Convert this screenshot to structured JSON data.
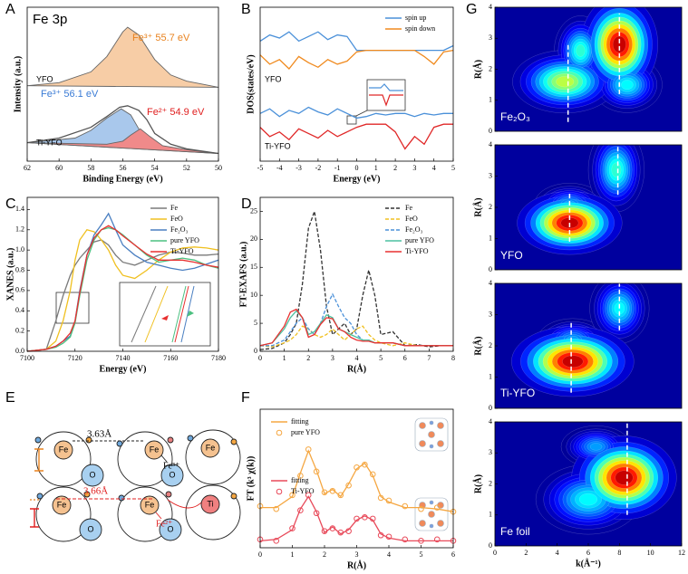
{
  "panel_labels": [
    "A",
    "B",
    "C",
    "D",
    "E",
    "F",
    "G"
  ],
  "chart_data": [
    {
      "type": "line",
      "x_label": "Binding Energy (eV)",
      "y_label": "Intensity (a.u.)",
      "xlim": [
        62,
        50
      ],
      "ylim": [
        0,
        10
      ],
      "xticks": [
        62,
        60,
        58,
        56,
        54,
        52,
        50
      ],
      "series": [
        {
          "color": "#f7cda6",
          "style": "area",
          "x": [
            62,
            60,
            58,
            57,
            56,
            55.7,
            55,
            54,
            53,
            52,
            50
          ],
          "values": [
            4.9,
            5.1,
            5.8,
            6.8,
            8.4,
            8.7,
            8.2,
            6.6,
            5.6,
            5.2,
            4.8
          ]
        },
        {
          "color": "#a9c8ec",
          "style": "area",
          "x": [
            62,
            59,
            58,
            57,
            56.1,
            55.5,
            55,
            54.5,
            54,
            52,
            50
          ],
          "values": [
            1.2,
            1.5,
            2.0,
            2.8,
            3.4,
            3.0,
            2.1,
            1.2,
            0.9,
            0.7,
            0.5
          ]
        },
        {
          "color": "#f08a8a",
          "style": "area",
          "x": [
            62,
            57,
            56,
            55.5,
            54.9,
            54.3,
            53.5,
            52,
            50
          ],
          "values": [
            1.2,
            1.1,
            1.3,
            1.7,
            2.1,
            1.6,
            1.0,
            0.75,
            0.5
          ]
        },
        {
          "color": "#555555",
          "style": "line",
          "x": [
            62,
            60,
            58,
            57,
            56.2,
            55.7,
            55,
            54.5,
            54,
            53,
            52,
            50
          ],
          "values": [
            1.2,
            1.5,
            2.2,
            2.9,
            3.5,
            3.6,
            3.3,
            2.7,
            1.8,
            1.1,
            0.8,
            0.5
          ]
        }
      ],
      "annotations": [
        {
          "text": "Fe 3p",
          "color": "#000000"
        },
        {
          "text": "Fe³⁺ 55.7 eV",
          "color": "#e8821e"
        },
        {
          "text": "YFO",
          "color": "#000000"
        },
        {
          "text": "Fe³⁺ 56.1 eV",
          "color": "#3a7bd5"
        },
        {
          "text": "Ti-YFO",
          "color": "#000000"
        },
        {
          "text": "Fe²⁺ 54.9 eV",
          "color": "#e02020"
        }
      ]
    },
    {
      "type": "line",
      "x_label": "Energy (eV)",
      "y_label": "DOS(states/eV)",
      "xlim": [
        -5,
        5
      ],
      "ylim": [
        0,
        10
      ],
      "xticks": [
        -5,
        -4,
        -3,
        -2,
        -1,
        0,
        1,
        2,
        3,
        4,
        5
      ],
      "legend": "upper right",
      "x": [
        -5,
        -4.5,
        -4,
        -3.5,
        -3,
        -2.5,
        -2,
        -1.5,
        -1,
        -0.5,
        0,
        0.5,
        1,
        1.5,
        2,
        2.5,
        3,
        3.5,
        4,
        4.5,
        5
      ],
      "series": [
        {
          "name": "spin up",
          "color": "#4a90d9",
          "style": "line",
          "values": [
            7.8,
            8.2,
            8.0,
            8.4,
            7.8,
            8.1,
            8.4,
            7.9,
            8.2,
            8.1,
            7.2,
            7.2,
            7.2,
            7.2,
            7.2,
            7.2,
            7.2,
            7.2,
            7.2,
            7.2,
            7.5
          ]
        },
        {
          "name": "spin down",
          "color": "#f08a1e",
          "style": "line",
          "values": [
            6.9,
            6.3,
            6.6,
            6.0,
            6.8,
            6.4,
            6.1,
            6.6,
            6.3,
            6.5,
            7.1,
            7.2,
            7.2,
            7.2,
            7.2,
            7.2,
            7.2,
            6.8,
            6.3,
            7.1,
            7.2
          ]
        },
        {
          "color": "#4a90d9",
          "style": "line",
          "values": [
            3.1,
            3.4,
            2.9,
            3.3,
            3.1,
            3.5,
            3.2,
            3.0,
            3.4,
            3.1,
            2.8,
            2.9,
            3.1,
            3.0,
            3.1,
            3.1,
            2.9,
            3.1,
            3.0,
            3.1,
            3.1
          ]
        },
        {
          "color": "#e02828",
          "style": "line",
          "values": [
            2.2,
            1.6,
            1.9,
            1.4,
            2.1,
            1.8,
            1.5,
            2.0,
            1.6,
            1.9,
            2.2,
            2.4,
            2.4,
            2.4,
            1.9,
            0.8,
            1.6,
            1.1,
            2.2,
            2.4,
            2.4
          ]
        }
      ],
      "annotations": [
        {
          "text": "YFO",
          "color": "#000000"
        },
        {
          "text": "Ti-YFO",
          "color": "#000000"
        }
      ]
    },
    {
      "type": "line",
      "x_label": "Energy (eV)",
      "y_label": "XANES (a.u.)",
      "xlim": [
        7100,
        7180
      ],
      "ylim": [
        0,
        1.52
      ],
      "xticks": [
        7100,
        7120,
        7140,
        7160,
        7180
      ],
      "yticks": [
        {
          "value": 0,
          "label": "0.0"
        },
        {
          "value": 0.2,
          "label": "0.2"
        },
        {
          "value": 0.4,
          "label": "0.4"
        },
        {
          "value": 0.6,
          "label": "0.6"
        },
        {
          "value": 0.8,
          "label": "0.8"
        },
        {
          "value": 1,
          "label": "1.0"
        },
        {
          "value": 1.2,
          "label": "1.2"
        },
        {
          "value": 1.4,
          "label": "1.4"
        }
      ],
      "legend": "upper right",
      "x": [
        7100,
        7108,
        7112,
        7115,
        7118,
        7120,
        7122,
        7125,
        7128,
        7131,
        7134,
        7137,
        7140,
        7145,
        7150,
        7155,
        7160,
        7165,
        7170,
        7175,
        7180
      ],
      "series": [
        {
          "name": "Fe",
          "color": "#7a7a7a",
          "style": "line",
          "values": [
            0,
            0.02,
            0.3,
            0.55,
            0.75,
            0.85,
            0.92,
            1.0,
            1.08,
            1.1,
            1.05,
            0.95,
            0.88,
            0.85,
            0.9,
            0.95,
            0.98,
            0.97,
            0.95,
            0.95,
            0.96
          ]
        },
        {
          "name": "FeO",
          "color": "#f0c020",
          "style": "line",
          "values": [
            0,
            0.02,
            0.1,
            0.3,
            0.6,
            0.9,
            1.1,
            1.2,
            1.18,
            1.1,
            1.0,
            0.85,
            0.75,
            0.72,
            0.8,
            0.9,
            0.98,
            1.02,
            1.03,
            1.02,
            1.0
          ]
        },
        {
          "name": "Fe₂O₃",
          "color": "#4a7fc1",
          "style": "line",
          "values": [
            0,
            0.02,
            0.05,
            0.1,
            0.15,
            0.3,
            0.6,
            0.95,
            1.15,
            1.25,
            1.36,
            1.2,
            1.05,
            0.95,
            0.88,
            0.85,
            0.82,
            0.8,
            0.82,
            0.86,
            0.9
          ]
        },
        {
          "name": "pure YFO",
          "color": "#4cc080",
          "style": "line",
          "values": [
            0,
            0.02,
            0.04,
            0.08,
            0.14,
            0.28,
            0.55,
            0.9,
            1.1,
            1.2,
            1.22,
            1.2,
            1.15,
            1.05,
            0.95,
            0.88,
            0.9,
            0.92,
            0.9,
            0.85,
            0.82
          ]
        },
        {
          "name": "Ti-YFO",
          "color": "#e83030",
          "style": "line",
          "values": [
            0,
            0.02,
            0.05,
            0.1,
            0.18,
            0.3,
            0.58,
            0.95,
            1.12,
            1.2,
            1.24,
            1.2,
            1.14,
            1.05,
            0.96,
            0.9,
            0.9,
            0.9,
            0.88,
            0.85,
            0.83
          ]
        }
      ]
    },
    {
      "type": "line",
      "x_label": "R(Å)",
      "y_label": "FT-EXAFS (a.u.)",
      "xlim": [
        0,
        8
      ],
      "ylim": [
        0,
        27.5
      ],
      "xticks": [
        0,
        1,
        2,
        3,
        4,
        5,
        6,
        7,
        8
      ],
      "yticks": [
        0,
        5,
        10,
        15,
        20,
        25
      ],
      "legend": "upper right",
      "x": [
        0,
        0.5,
        1,
        1.25,
        1.5,
        1.75,
        2,
        2.25,
        2.5,
        2.75,
        3,
        3.25,
        3.5,
        3.75,
        4,
        4.25,
        4.5,
        4.75,
        5,
        5.5,
        6,
        6.5,
        7,
        7.5,
        8
      ],
      "series": [
        {
          "name": "Fe",
          "color": "#333333",
          "style": "dashed",
          "values": [
            0.3,
            0.5,
            1.5,
            3,
            5,
            12,
            22,
            25,
            18,
            8,
            3,
            4,
            5,
            3,
            4,
            10,
            14.5,
            10,
            3,
            3.5,
            1,
            1.2,
            0.8,
            1,
            1
          ]
        },
        {
          "name": "FeO",
          "color": "#f0c020",
          "style": "dashed",
          "values": [
            1,
            0.8,
            1.5,
            2,
            3,
            4.5,
            4,
            3,
            2.5,
            3,
            4,
            3,
            2,
            3,
            4,
            4.5,
            3,
            2,
            1.5,
            1,
            1.5,
            1,
            1,
            1,
            1
          ]
        },
        {
          "name": "Fe₂O₃",
          "color": "#4a90d9",
          "style": "dashed",
          "values": [
            1,
            1,
            2,
            3.5,
            5,
            6,
            4,
            3,
            5,
            8,
            10.2,
            8,
            6,
            5,
            3,
            2,
            2,
            1.5,
            1.5,
            1.5,
            1,
            1,
            1,
            1,
            1
          ]
        },
        {
          "name": "pure YFO",
          "color": "#4cc0a0",
          "style": "line",
          "values": [
            1,
            1.5,
            4,
            6,
            7.2,
            6,
            3,
            3.5,
            5,
            6.5,
            6,
            4,
            3.5,
            3,
            2.5,
            2,
            2,
            1.5,
            1.5,
            1.5,
            1,
            1,
            1,
            1,
            1
          ]
        },
        {
          "name": "Ti-YFO",
          "color": "#e83030",
          "style": "line",
          "values": [
            1,
            1.5,
            4.5,
            7,
            7.5,
            6,
            2.5,
            3,
            4.8,
            6,
            5.8,
            4,
            3.5,
            2.5,
            2,
            1.8,
            1.8,
            1.5,
            1.5,
            1.5,
            1,
            1,
            1,
            1,
            1
          ]
        }
      ]
    },
    {
      "type": "line",
      "x_label": "R(Å)",
      "y_label": "FT (k³ χ(k))",
      "xlim": [
        0,
        6
      ],
      "ylim": [
        0,
        10
      ],
      "xticks": [
        0,
        1,
        2,
        3,
        4,
        5,
        6
      ],
      "legend": "upper left",
      "x": [
        0,
        0.5,
        1,
        1.25,
        1.5,
        1.75,
        2,
        2.25,
        2.5,
        2.75,
        3,
        3.25,
        3.5,
        3.75,
        4,
        4.5,
        5,
        5.5,
        6
      ],
      "series": [
        {
          "name": "fitting",
          "color": "#f5a742",
          "style": "line",
          "values": [
            2.9,
            2.9,
            3.7,
            5.4,
            7.0,
            5.6,
            3.9,
            4.2,
            3.7,
            4.6,
            5.7,
            6.1,
            5.2,
            3.7,
            3.3,
            2.9,
            2.9,
            2.8,
            2.6
          ]
        },
        {
          "name": "pure YFO",
          "color": "#f5a742",
          "style": "markers",
          "values": [
            3.0,
            2.8,
            3.8,
            5.2,
            7.1,
            5.5,
            4.0,
            4.1,
            3.8,
            4.5,
            5.8,
            6.0,
            5.3,
            3.6,
            3.4,
            3.0,
            2.8,
            2.9,
            2.6
          ]
        },
        {
          "name": "fitting",
          "color": "#e84a5a",
          "style": "line",
          "values": [
            0.5,
            0.6,
            1.3,
            2.8,
            3.7,
            2.6,
            1.1,
            1.5,
            1.0,
            1.3,
            2.0,
            2.3,
            2.0,
            1.0,
            0.7,
            0.5,
            0.5,
            0.5,
            0.5
          ]
        },
        {
          "name": "Ti-YFO",
          "color": "#e84a5a",
          "style": "markers",
          "values": [
            0.6,
            0.5,
            1.4,
            2.7,
            3.8,
            2.5,
            1.2,
            1.4,
            1.1,
            1.2,
            2.1,
            2.2,
            2.1,
            0.9,
            0.8,
            0.6,
            0.5,
            0.6,
            0.5
          ]
        }
      ]
    },
    {
      "type": "heatmap",
      "y_label": "R(Å)",
      "xlim": [
        0,
        12
      ],
      "ylim": [
        0,
        4
      ],
      "yticks": [
        0,
        1,
        2,
        3,
        4
      ],
      "peaks": [
        {
          "x": 8,
          "y": 2.8,
          "z": 1,
          "wx": 2.2,
          "wy": 0.7
        },
        {
          "x": 5.5,
          "y": 2.6,
          "z": 0.45,
          "wx": 1.5,
          "wy": 0.5
        },
        {
          "x": 4.5,
          "y": 1.6,
          "z": 0.6,
          "wx": 3,
          "wy": 0.45
        },
        {
          "x": 8.5,
          "y": 1.5,
          "z": 0.4,
          "wx": 2,
          "wy": 0.4
        }
      ],
      "dashes": [
        {
          "x": 4.7,
          "y": [
            0.3,
            2.8
          ]
        },
        {
          "x": 8.0,
          "y": [
            1.2,
            3.8
          ]
        }
      ],
      "annotations": [
        {
          "text": "Fe₂O₃",
          "color": "#ffffff"
        }
      ]
    },
    {
      "type": "heatmap",
      "y_label": "R(Å)",
      "xlim": [
        0,
        12
      ],
      "ylim": [
        0,
        4
      ],
      "yticks": [
        0,
        1,
        2,
        3,
        4
      ],
      "peaks": [
        {
          "x": 4.8,
          "y": 1.5,
          "z": 1,
          "wx": 3,
          "wy": 0.45
        },
        {
          "x": 7.8,
          "y": 3.2,
          "z": 0.45,
          "wx": 1.6,
          "wy": 0.6
        },
        {
          "x": 4.8,
          "y": 2.1,
          "z": 0.3,
          "wx": 2,
          "wy": 0.3
        }
      ],
      "dashes": [
        {
          "x": 4.8,
          "y": [
            0.9,
            2.5
          ]
        },
        {
          "x": 7.9,
          "y": [
            2.4,
            4
          ]
        }
      ],
      "annotations": [
        {
          "text": "YFO",
          "color": "#ffffff"
        }
      ]
    },
    {
      "type": "heatmap",
      "y_label": "R(Å)",
      "xlim": [
        0,
        12
      ],
      "ylim": [
        0,
        4
      ],
      "yticks": [
        0,
        1,
        2,
        3,
        4
      ],
      "peaks": [
        {
          "x": 5,
          "y": 1.5,
          "z": 1,
          "wx": 3.5,
          "wy": 0.5
        },
        {
          "x": 8,
          "y": 3.2,
          "z": 0.4,
          "wx": 1.7,
          "wy": 0.5
        },
        {
          "x": 5,
          "y": 2.2,
          "z": 0.3,
          "wx": 2,
          "wy": 0.3
        }
      ],
      "dashes": [
        {
          "x": 4.9,
          "y": [
            0.5,
            2.8
          ]
        },
        {
          "x": 8.0,
          "y": [
            2.5,
            4
          ]
        }
      ],
      "annotations": [
        {
          "text": "Ti-YFO",
          "color": "#ffffff"
        }
      ]
    },
    {
      "type": "heatmap",
      "x_label": "k(Å⁻¹)",
      "y_label": "R(Å)",
      "xlim": [
        0,
        12
      ],
      "ylim": [
        0,
        4
      ],
      "xticks": [
        0,
        2,
        4,
        6,
        8,
        10,
        12
      ],
      "yticks": [
        0,
        1,
        2,
        3,
        4
      ],
      "peaks": [
        {
          "x": 8.3,
          "y": 2.2,
          "z": 1,
          "wx": 3,
          "wy": 0.6
        },
        {
          "x": 6,
          "y": 1.5,
          "z": 0.4,
          "wx": 3,
          "wy": 0.5
        },
        {
          "x": 6.5,
          "y": 3.2,
          "z": 0.3,
          "wx": 2,
          "wy": 0.3
        }
      ],
      "dashes": [
        {
          "x": 8.5,
          "y": [
            1,
            4
          ]
        }
      ],
      "annotations": [
        {
          "text": "Fe foil",
          "color": "#ffffff"
        }
      ]
    }
  ],
  "diagram": {
    "top": {
      "distance": "3.63Å",
      "ion": "Fe³⁺",
      "atoms": [
        "Fe",
        "Fe",
        "Fe",
        "O",
        "O"
      ]
    },
    "bottom": {
      "distance": "3.66Å",
      "ion": "Fe²⁺",
      "atoms": [
        "Fe",
        "Fe",
        "Ti",
        "O",
        "O"
      ]
    }
  }
}
